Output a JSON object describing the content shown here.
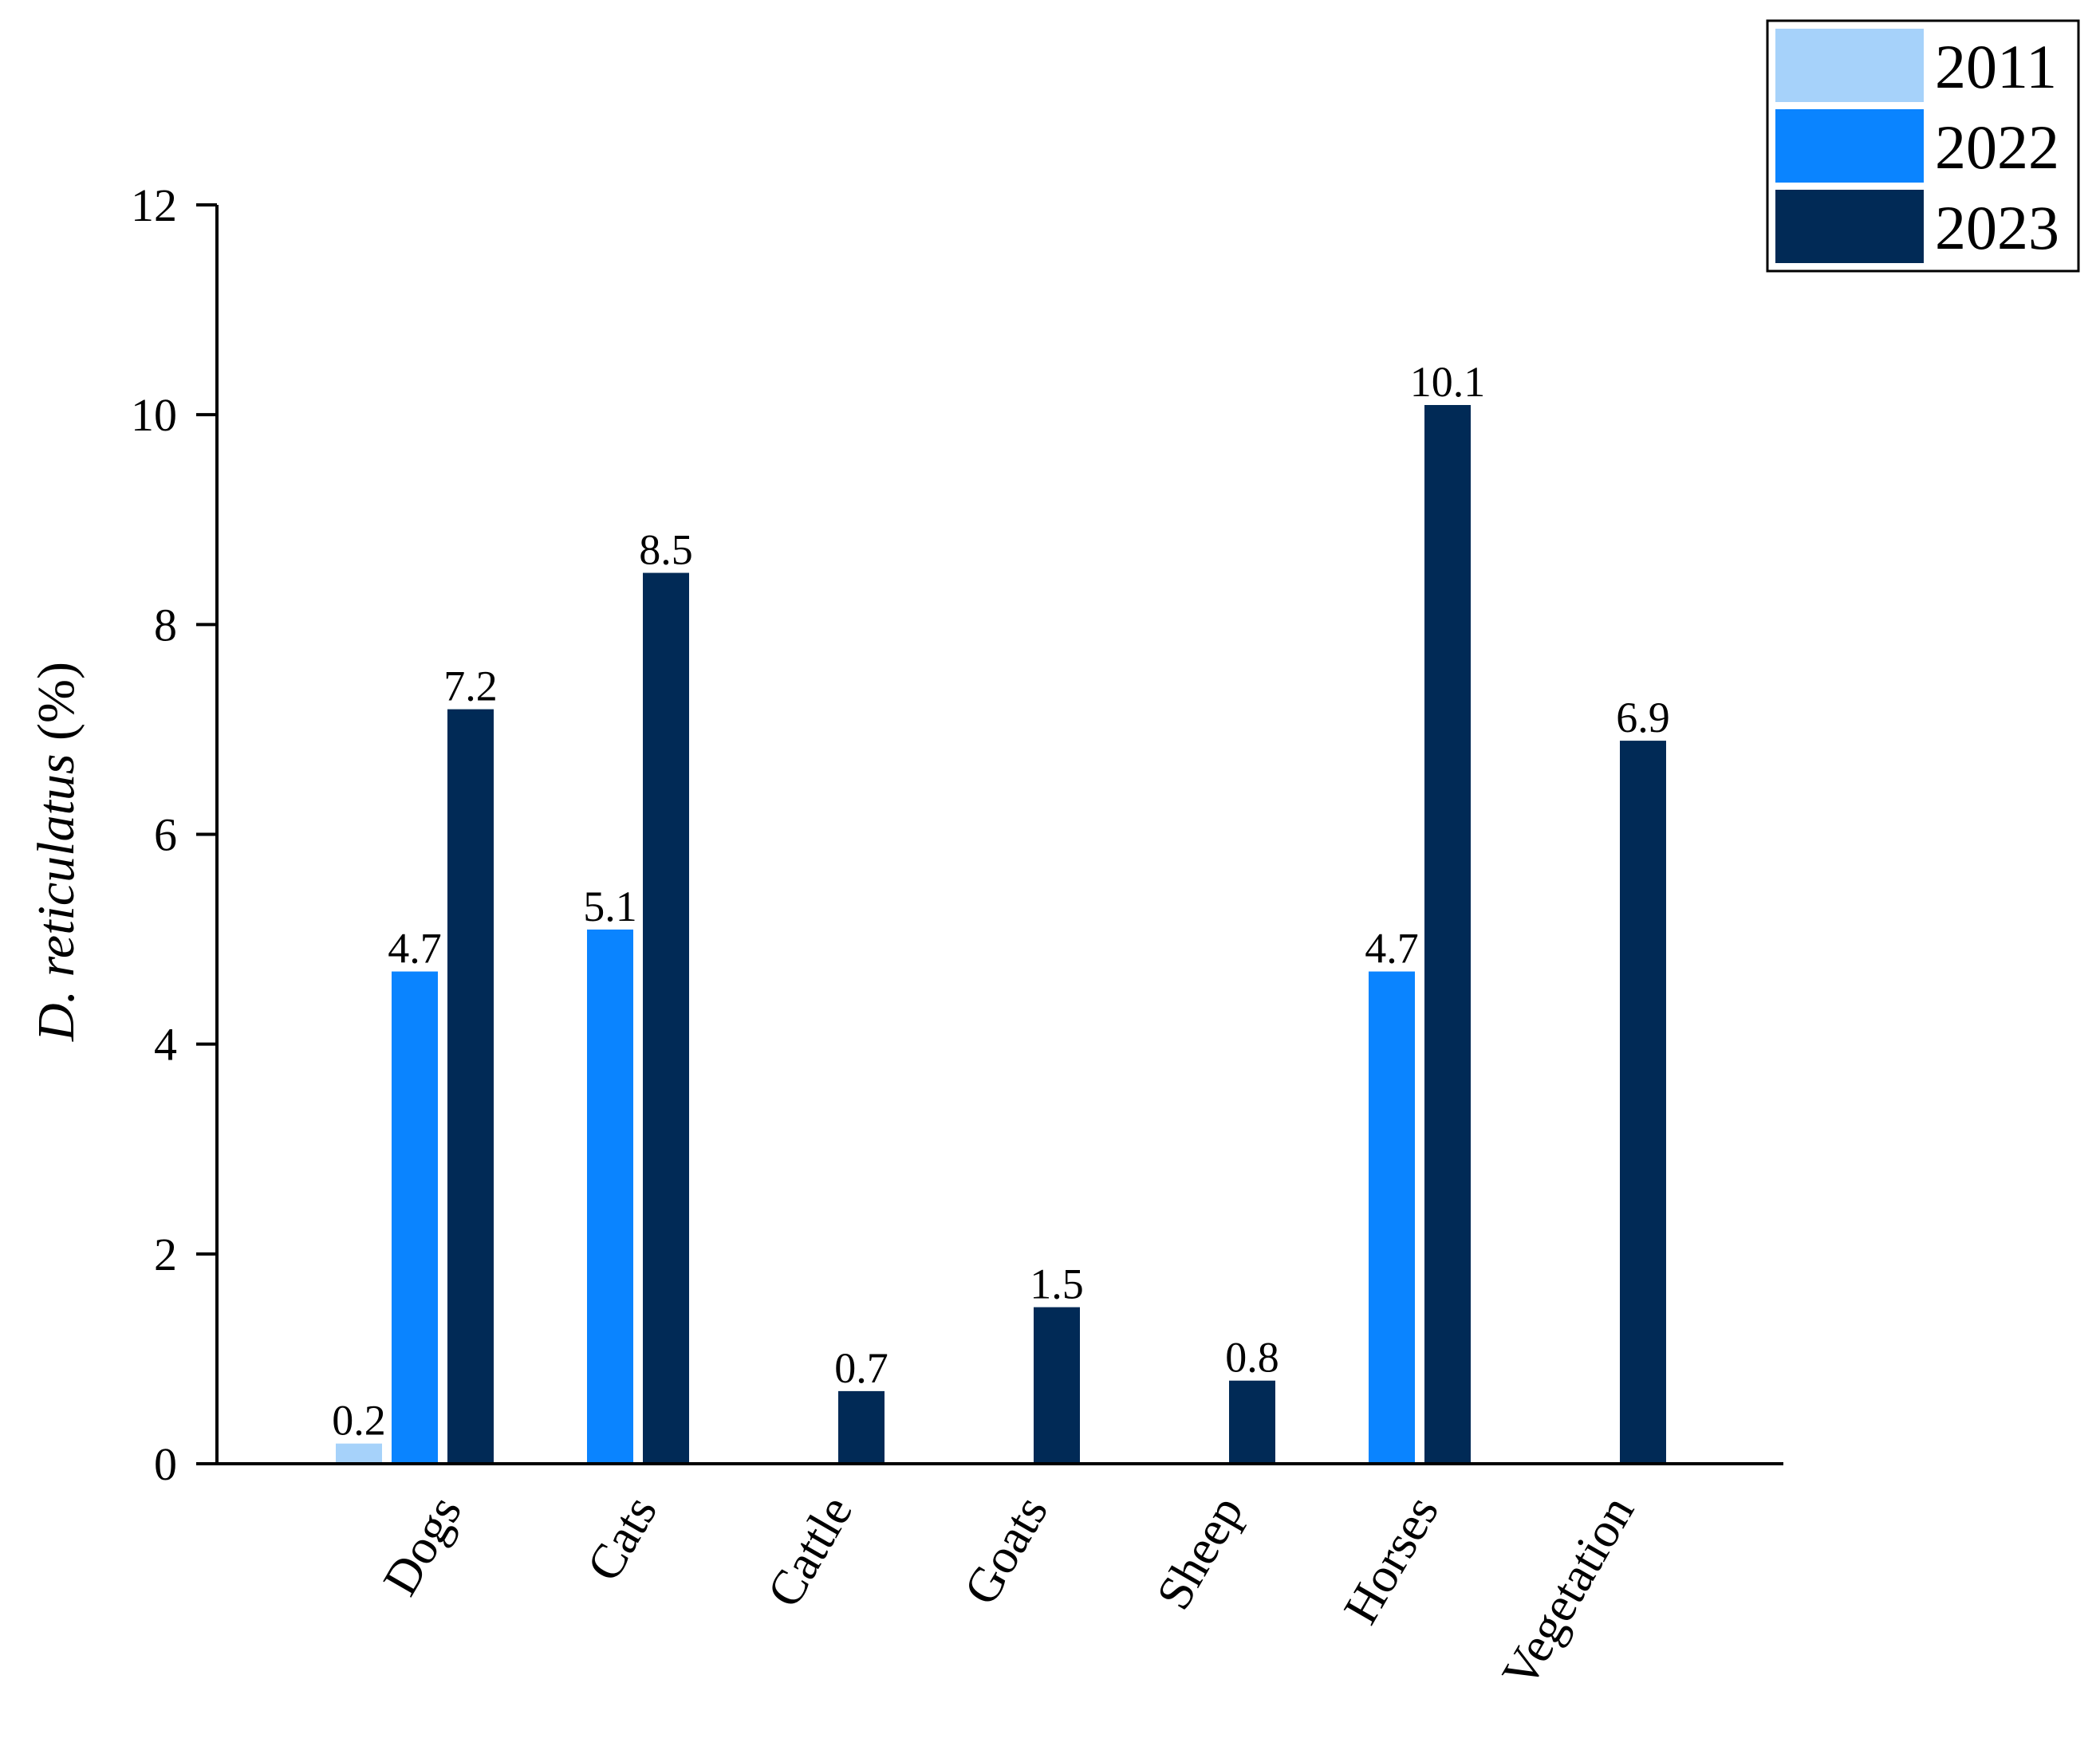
{
  "chart_data": {
    "type": "bar",
    "categories": [
      "Dogs",
      "Cats",
      "Cattle",
      "Goats",
      "Sheep",
      "Horses",
      "Vegetation"
    ],
    "series": [
      {
        "name": "2011",
        "color": "#a6d2fa",
        "values": [
          0.2,
          null,
          null,
          null,
          null,
          null,
          null
        ]
      },
      {
        "name": "2022",
        "color": "#0a84ff",
        "values": [
          4.7,
          5.1,
          null,
          null,
          null,
          4.7,
          null
        ]
      },
      {
        "name": "2023",
        "color": "#012a56",
        "values": [
          7.2,
          8.5,
          0.7,
          1.5,
          0.8,
          10.1,
          6.9
        ]
      }
    ],
    "data_labels": [
      [
        "0.2",
        null,
        null,
        null,
        null,
        null,
        null
      ],
      [
        "4.7",
        "5.1",
        null,
        null,
        null,
        "4.7",
        null
      ],
      [
        "7.2",
        "8.5",
        "0.7",
        "1.5",
        "0.8",
        "10.1",
        "6.9"
      ]
    ],
    "ylabel": {
      "italic": "D. reticulatus",
      "plain": " (%)"
    },
    "xlabel": "",
    "title": "",
    "ylim": [
      0,
      12
    ],
    "yticks": [
      "0",
      "2",
      "4",
      "6",
      "8",
      "10",
      "12"
    ],
    "grid": false,
    "legend": {
      "placement": "top-right",
      "entries": [
        "2011",
        "2022",
        "2023"
      ]
    }
  }
}
